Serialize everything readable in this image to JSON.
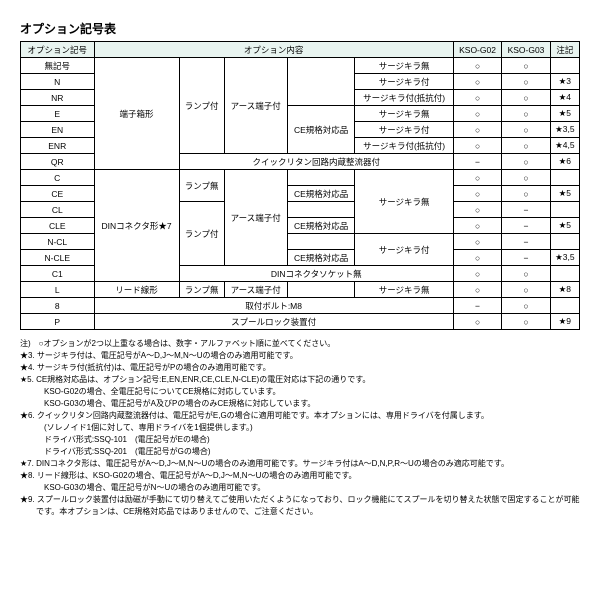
{
  "title": "オプション記号表",
  "headers": {
    "col1": "オプション記号",
    "col2": "オプション内容",
    "g02": "KSO-G02",
    "g03": "KSO-G03",
    "notes": "注記"
  },
  "rows": [
    {
      "code": "無記号",
      "c1": "",
      "c2": "",
      "c3": "",
      "c4": "",
      "c5": "サージキラ無",
      "g02": "○",
      "g03": "○",
      "note": ""
    },
    {
      "code": "N",
      "c1": "",
      "c2": "",
      "c3": "",
      "c4": "",
      "c5": "サージキラ付",
      "g02": "○",
      "g03": "○",
      "note": "★3"
    },
    {
      "code": "NR",
      "c1": "端子箱形",
      "c2": "ランプ付",
      "c3": "アース端子付",
      "c4": "",
      "c5": "サージキラ付(抵抗付)",
      "g02": "○",
      "g03": "○",
      "note": "★4"
    },
    {
      "code": "E",
      "c1": "",
      "c2": "",
      "c3": "",
      "c4": "CE規格対応品",
      "c5": "サージキラ無",
      "g02": "○",
      "g03": "○",
      "note": "★5"
    },
    {
      "code": "EN",
      "c1": "",
      "c2": "",
      "c3": "",
      "c4": "",
      "c5": "サージキラ付",
      "g02": "○",
      "g03": "○",
      "note": "★3,5"
    },
    {
      "code": "ENR",
      "c1": "",
      "c2": "",
      "c3": "",
      "c4": "",
      "c5": "サージキラ付(抵抗付)",
      "g02": "○",
      "g03": "○",
      "note": "★4,5"
    },
    {
      "code": "QR",
      "c1": "",
      "c2": "",
      "c3": "クイックリタン回路内蔵整流器付",
      "c4": "",
      "c5": "",
      "g02": "−",
      "g03": "○",
      "note": "★6"
    },
    {
      "code": "C",
      "c1": "",
      "c2": "ランプ無",
      "c3": "",
      "c4": "",
      "c5": "サージキラ無",
      "g02": "○",
      "g03": "○",
      "note": ""
    },
    {
      "code": "CE",
      "c1": "",
      "c2": "",
      "c3": "",
      "c4": "CE規格対応品",
      "c5": "",
      "g02": "○",
      "g03": "○",
      "note": "★5"
    },
    {
      "code": "CL",
      "c1": "DINコネクタ形★7",
      "c2": "ランプ付",
      "c3": "アース端子付",
      "c4": "",
      "c5": "",
      "g02": "○",
      "g03": "−",
      "note": ""
    },
    {
      "code": "CLE",
      "c1": "",
      "c2": "",
      "c3": "",
      "c4": "CE規格対応品",
      "c5": "",
      "g02": "○",
      "g03": "−",
      "note": "★5"
    },
    {
      "code": "N-CL",
      "c1": "",
      "c2": "",
      "c3": "",
      "c4": "",
      "c5": "サージキラ付",
      "g02": "○",
      "g03": "−",
      "note": ""
    },
    {
      "code": "N-CLE",
      "c1": "",
      "c2": "",
      "c3": "",
      "c4": "CE規格対応品",
      "c5": "",
      "g02": "○",
      "g03": "−",
      "note": "★3,5"
    },
    {
      "code": "C1",
      "c1": "",
      "c2": "",
      "c3": "DINコネクタソケット無",
      "c4": "",
      "c5": "",
      "g02": "○",
      "g03": "○",
      "note": ""
    },
    {
      "code": "L",
      "c1": "リード線形",
      "c2": "ランプ無",
      "c3": "アース端子付",
      "c4": "",
      "c5": "サージキラ無",
      "g02": "○",
      "g03": "○",
      "note": "★8"
    },
    {
      "code": "8",
      "c1": "",
      "c2": "",
      "c3": "取付ボルト:M8",
      "c4": "",
      "c5": "",
      "g02": "−",
      "g03": "○",
      "note": ""
    },
    {
      "code": "P",
      "c1": "",
      "c2": "",
      "c3": "スプールロック装置付",
      "c4": "",
      "c5": "",
      "g02": "○",
      "g03": "○",
      "note": "★9"
    }
  ],
  "notes": [
    "注)　○オプションが2つ以上重なる場合は、数字・アルファベット順に並べてください。",
    "★3. サージキラ付は、電圧記号がA～D,J～M,N～Uの場合のみ適用可能です。",
    "★4. サージキラ付(抵抗付)は、電圧記号がPの場合のみ適用可能です。",
    "★5. CE規格対応品は、オプション記号:E,EN,ENR,CE,CLE,N-CLE)の電圧対応は下記の通りです。",
    "KSO-G02の場合、全電圧記号についてCE規格に対応しています。",
    "KSO-G03の場合、電圧記号がA及びPの場合のみCE規格に対応しています。",
    "★6. クイックリタン回路内蔵整流器付は、電圧記号がE,Gの場合に適用可能です。本オプションには、専用ドライバを付属します。",
    "(ソレノイド1個に対して、専用ドライバを1個提供します。)",
    "ドライバ形式:SSQ-101　(電圧記号がEの場合)",
    "ドライバ形式:SSQ-201　(電圧記号がGの場合)",
    "★7. DINコネクタ形は、電圧記号がA～D,J～M,N～Uの場合のみ適用可能です。サージキラ付はA～D,N,P,R～Uの場合のみ適応可能です。",
    "★8. リード線形は、KSO-G02の場合、電圧記号がA～D,J～M,N～Uの場合のみ適用可能です。",
    "KSO-G03の場合、電圧記号がN～Uの場合のみ適用可能です。",
    "★9. スプールロック装置付は励磁が手動にて切り替えてご使用いただくようになっており、ロック機能にてスプールを切り替えた状態で固定することが可能です。本オプションは、CE規格対応品ではありませんので、ご注意ください。"
  ]
}
